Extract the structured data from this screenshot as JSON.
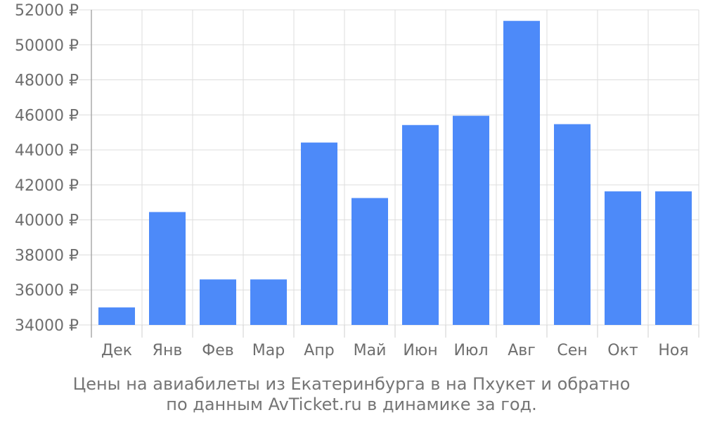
{
  "chart_data": {
    "type": "bar",
    "categories": [
      "Дек",
      "Янв",
      "Фев",
      "Мар",
      "Апр",
      "Май",
      "Июн",
      "Июл",
      "Авг",
      "Сен",
      "Окт",
      "Ноя"
    ],
    "values": [
      35000,
      40450,
      36600,
      36600,
      44420,
      41250,
      45420,
      45950,
      51370,
      45470,
      41630,
      41630
    ],
    "ylim": [
      34000,
      52000
    ],
    "yticks": [
      "34000 ₽",
      "36000 ₽",
      "38000 ₽",
      "40000 ₽",
      "42000 ₽",
      "44000 ₽",
      "46000 ₽",
      "48000 ₽",
      "50000 ₽",
      "52000 ₽"
    ],
    "grid": true,
    "bar_color": "#4d8af9",
    "caption_line1": "Цены на авиабилеты из Екатеринбурга в на Пхукет и обратно",
    "caption_line2": "по данным AvTicket.ru в динамике за год."
  }
}
